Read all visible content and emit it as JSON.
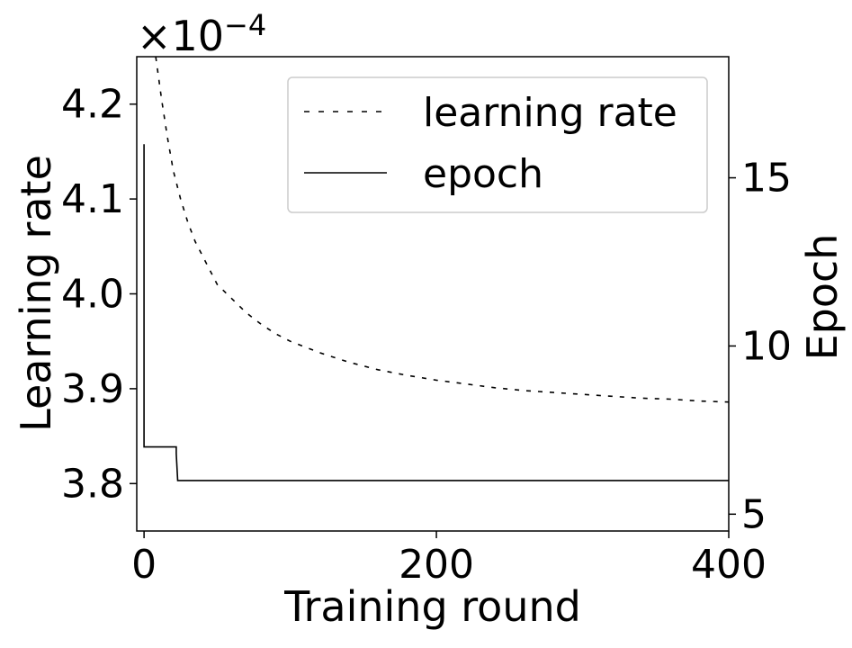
{
  "chart_data": {
    "type": "line",
    "x_axis": {
      "label": "Training round",
      "range": [
        -5,
        400
      ],
      "ticks": [
        0,
        200,
        400
      ],
      "tick_labels": [
        "0",
        "200",
        "400"
      ]
    },
    "y_axis_left": {
      "label": "Learning rate",
      "range": [
        3.75,
        4.25
      ],
      "ticks": [
        3.8,
        3.9,
        4.0,
        4.1,
        4.2
      ],
      "tick_labels": [
        "3.8",
        "3.9",
        "4.0",
        "4.1",
        "4.2"
      ],
      "multiplier_base": "×10",
      "multiplier_exponent": "−4"
    },
    "y_axis_right": {
      "label": "Epoch",
      "range": [
        4.5,
        18.6
      ],
      "ticks": [
        5,
        10,
        15
      ],
      "tick_labels": [
        "5",
        "10",
        "15"
      ]
    },
    "legend": {
      "placement": "top-right",
      "entries": [
        "learning rate",
        "epoch"
      ]
    },
    "series": [
      {
        "name": "learning rate",
        "axis": "left",
        "style": "dashed",
        "color": "#000000",
        "x": [
          8,
          12,
          16,
          20,
          25,
          30,
          35,
          40,
          50,
          60,
          70,
          80,
          90,
          100,
          120,
          140,
          160,
          180,
          200,
          220,
          240,
          260,
          280,
          300,
          320,
          340,
          360,
          380,
          400
        ],
        "y": [
          4.25,
          4.205,
          4.165,
          4.13,
          4.1,
          4.075,
          4.055,
          4.04,
          4.01,
          3.995,
          3.98,
          3.968,
          3.958,
          3.95,
          3.938,
          3.928,
          3.92,
          3.914,
          3.909,
          3.905,
          3.901,
          3.898,
          3.896,
          3.894,
          3.892,
          3.89,
          3.889,
          3.887,
          3.886
        ]
      },
      {
        "name": "epoch",
        "axis": "right",
        "style": "solid",
        "color": "#000000",
        "x": [
          0,
          0,
          1,
          22,
          22,
          23,
          400
        ],
        "y": [
          16,
          7,
          7,
          7,
          6.8,
          6,
          6
        ]
      }
    ]
  }
}
